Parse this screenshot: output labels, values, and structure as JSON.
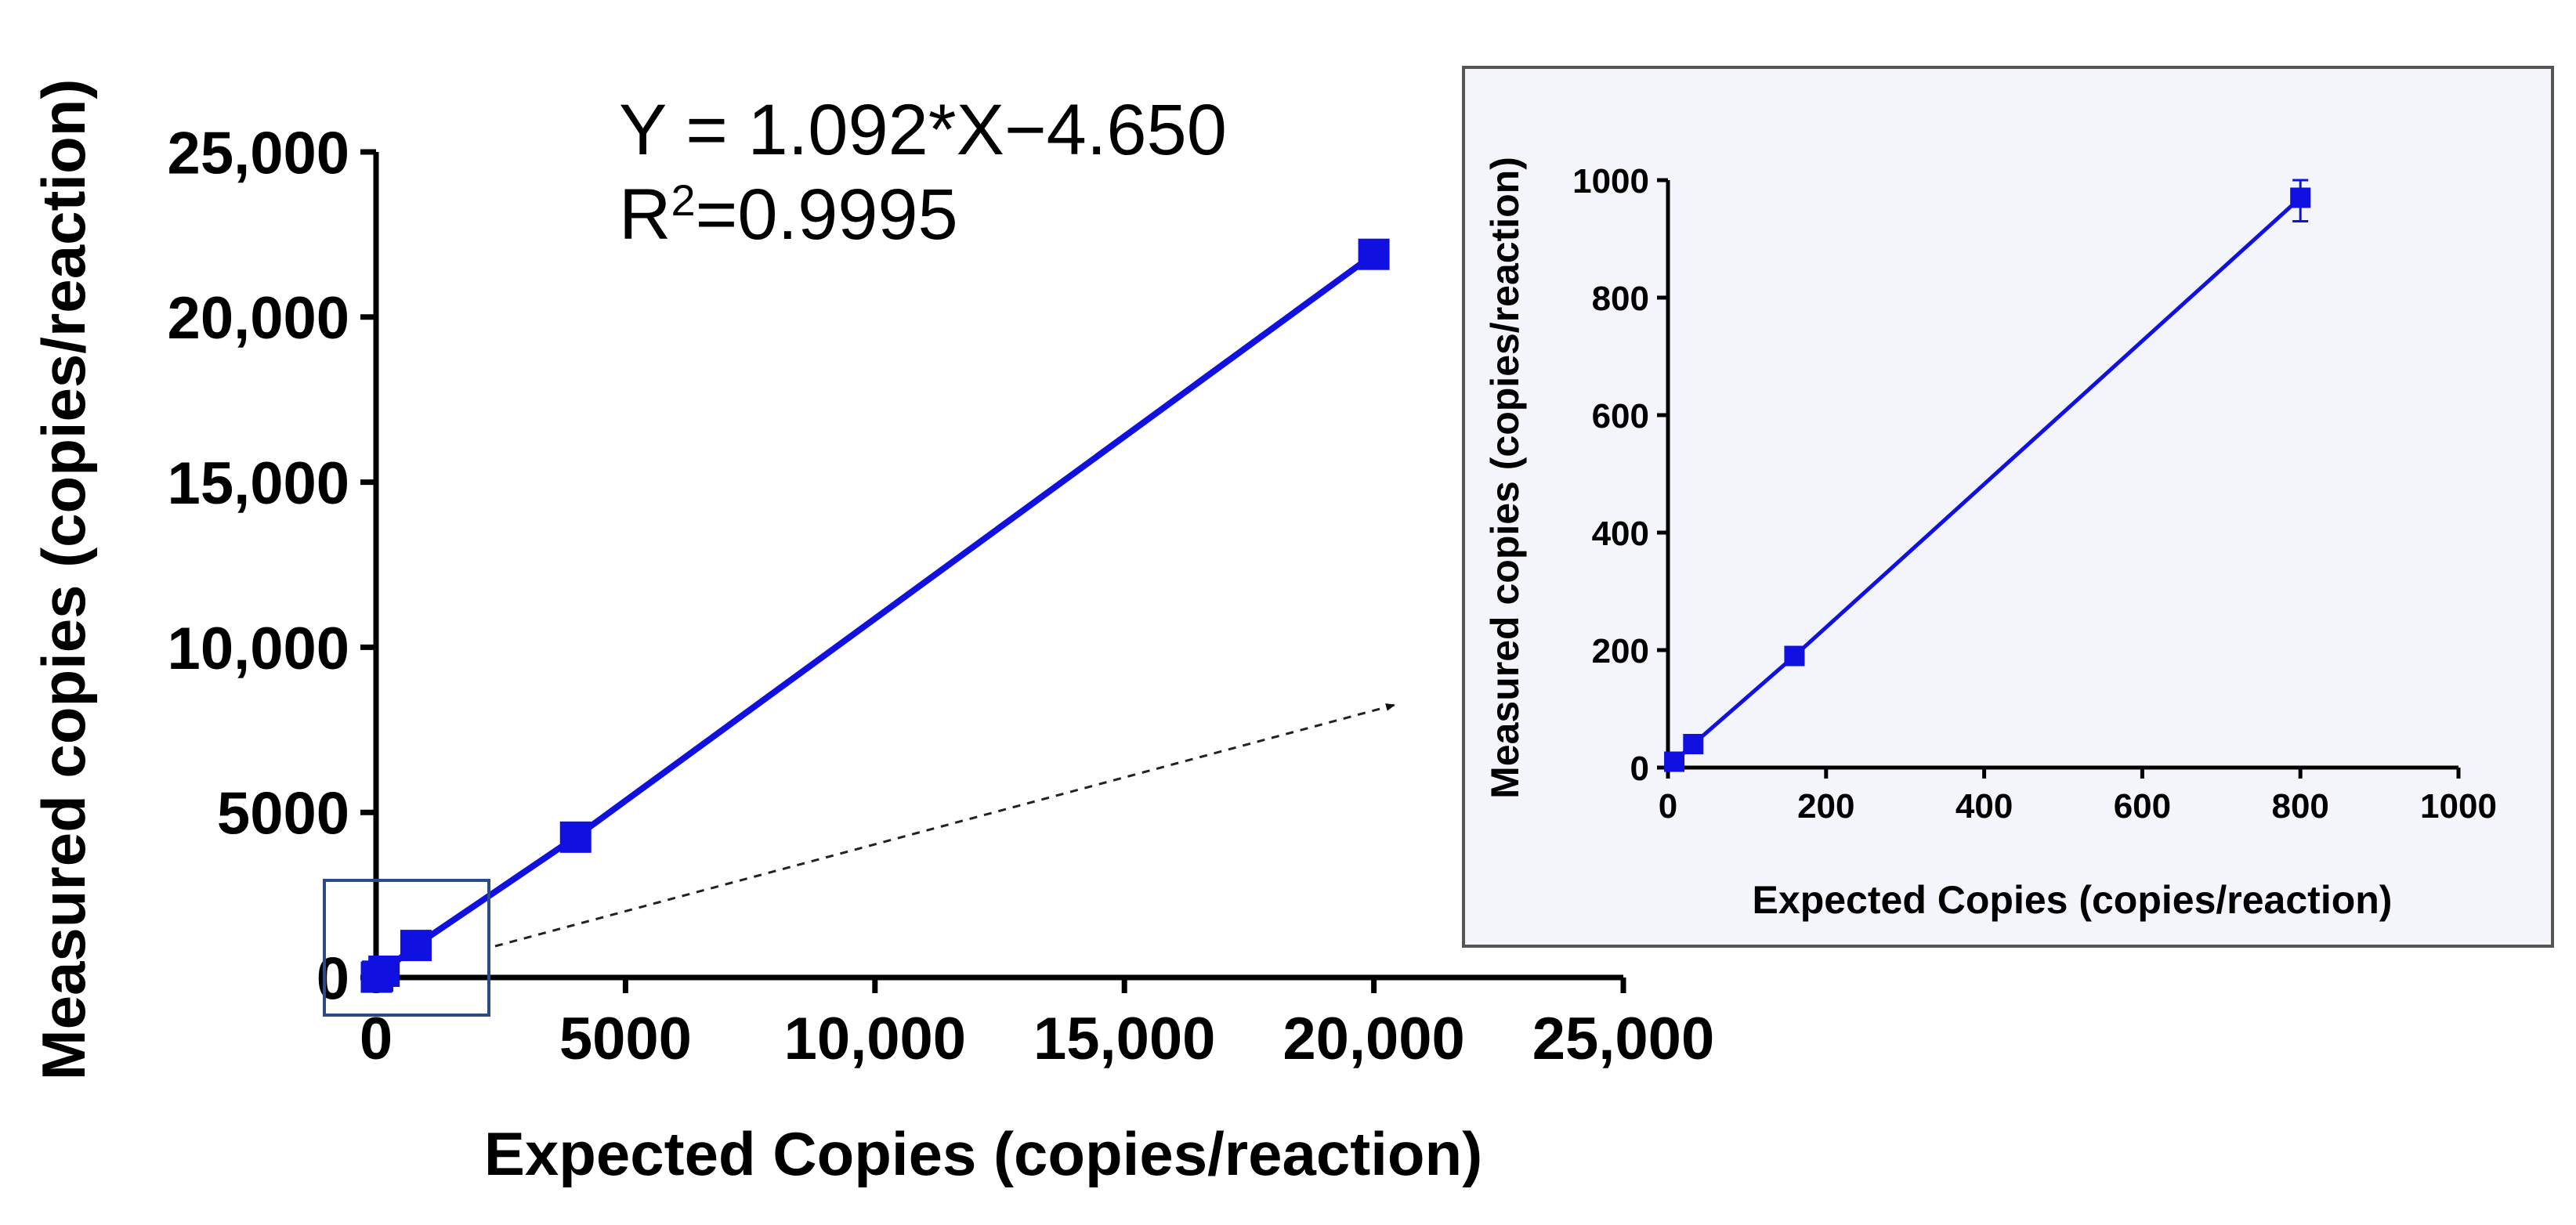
{
  "chart_data": [
    {
      "type": "line",
      "title": "",
      "xlabel": "Expected Copies (copies/reaction)",
      "ylabel": "Measured copies (copies/reaction)",
      "xlim": [
        0,
        25000
      ],
      "ylim": [
        0,
        25000
      ],
      "x_ticks": [
        0,
        5000,
        10000,
        15000,
        20000,
        25000
      ],
      "x_tick_labels": [
        "0",
        "5000",
        "10,000",
        "15,000",
        "20,000",
        "25,000"
      ],
      "y_ticks": [
        0,
        5000,
        10000,
        15000,
        20000,
        25000
      ],
      "y_tick_labels": [
        "0",
        "5000",
        "10,000",
        "15,000",
        "20,000",
        "25,000"
      ],
      "grid": false,
      "series": [
        {
          "color": "#1010e0",
          "marker": "square",
          "points": [
            {
              "x": 8,
              "y": 10
            },
            {
              "x": 32,
              "y": 40
            },
            {
              "x": 160,
              "y": 190
            },
            {
              "x": 800,
              "y": 970
            },
            {
              "x": 4000,
              "y": 4250
            },
            {
              "x": 20000,
              "y": 21900
            }
          ]
        }
      ],
      "annotations": {
        "equation_line1": "Y = 1.092*X−4.650",
        "equation_line2_prefix": "R",
        "equation_line2_sup": "2",
        "equation_line2_suffix": "=0.9995"
      },
      "zoom_region": {
        "x_range": [
          0,
          1000
        ],
        "y_range": [
          0,
          1000
        ]
      }
    },
    {
      "type": "line",
      "title": "",
      "xlabel": "Expected Copies (copies/reaction)",
      "ylabel": "Measured copies (copies/reaction)",
      "xlim": [
        0,
        1000
      ],
      "ylim": [
        0,
        1000
      ],
      "x_ticks": [
        0,
        200,
        400,
        600,
        800,
        1000
      ],
      "x_tick_labels": [
        "0",
        "200",
        "400",
        "600",
        "800",
        "1000"
      ],
      "y_ticks": [
        0,
        200,
        400,
        600,
        800,
        1000
      ],
      "y_tick_labels": [
        "0",
        "200",
        "400",
        "600",
        "800",
        "1000"
      ],
      "grid": false,
      "series": [
        {
          "color": "#1010e0",
          "marker": "square",
          "points": [
            {
              "x": 8,
              "y": 10
            },
            {
              "x": 32,
              "y": 40
            },
            {
              "x": 160,
              "y": 190
            },
            {
              "x": 800,
              "y": 970,
              "err_low": 930,
              "err_high": 1000
            }
          ]
        }
      ]
    }
  ]
}
